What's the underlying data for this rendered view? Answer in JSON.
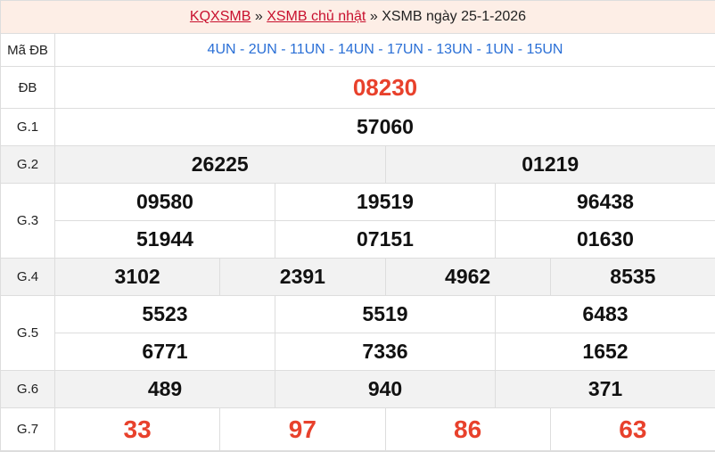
{
  "breadcrumb": {
    "home": "KQXSMB",
    "sep": "»",
    "day": "XSMB chủ nhật",
    "current": "XSMB ngày 25-1-2026"
  },
  "ma_db": {
    "label": "Mã ĐB",
    "value": "4UN - 2UN - 11UN - 14UN - 17UN - 13UN - 1UN - 15UN"
  },
  "prizes": [
    {
      "label": "ĐB",
      "lines": [
        [
          "08230"
        ]
      ]
    },
    {
      "label": "G.1",
      "lines": [
        [
          "57060"
        ]
      ]
    },
    {
      "label": "G.2",
      "lines": [
        [
          "26225",
          "01219"
        ]
      ]
    },
    {
      "label": "G.3",
      "lines": [
        [
          "09580",
          "19519",
          "96438"
        ],
        [
          "51944",
          "07151",
          "01630"
        ]
      ]
    },
    {
      "label": "G.4",
      "lines": [
        [
          "3102",
          "2391",
          "4962",
          "8535"
        ]
      ]
    },
    {
      "label": "G.5",
      "lines": [
        [
          "5523",
          "5519",
          "6483"
        ],
        [
          "6771",
          "7336",
          "1652"
        ]
      ]
    },
    {
      "label": "G.6",
      "lines": [
        [
          "489",
          "940",
          "371"
        ]
      ]
    },
    {
      "label": "G.7",
      "lines": [
        [
          "33",
          "97",
          "86",
          "63"
        ]
      ]
    }
  ],
  "colors": {
    "accent": "#e8412c",
    "link": "#c8102e",
    "code": "#2a6fd6"
  }
}
